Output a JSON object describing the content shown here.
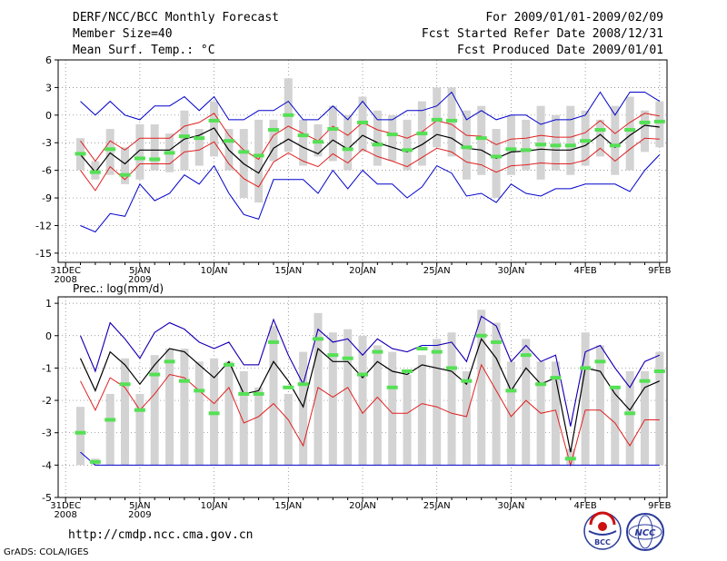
{
  "header": {
    "title": "DERF/NCC/BCC Monthly Forecast",
    "member_size": "Member Size=40",
    "variable": "Mean Surf. Temp.: °C",
    "period": "For 2009/01/01-2009/02/09",
    "started": "Fcst Started Refer Date 2008/12/31",
    "produced": "Fcst Produced Date 2009/01/01"
  },
  "footer": {
    "url": "http://cmdp.ncc.cma.gov.cn",
    "credit": "GrADS: COLA/IGES"
  },
  "logos": {
    "bcc_text": "BCC",
    "ncc_text": "NCC"
  },
  "colors": {
    "box": "#d3d3d3",
    "median": "#55e055",
    "mean": "#000000",
    "sd": "#e02020",
    "extreme": "#0000cc",
    "grid": "#777777"
  },
  "chart_data": [
    {
      "type": "box-line",
      "title": "",
      "ylabel": "",
      "ylim": [
        -16,
        6
      ],
      "yticks": [
        6,
        3,
        0,
        -3,
        -6,
        -9,
        -12,
        -15
      ],
      "x_start": "2008-12-31",
      "x_ticks": [
        {
          "day": 0,
          "label": "31DEC",
          "sub": "2008"
        },
        {
          "day": 5,
          "label": "5JAN",
          "sub": "2009"
        },
        {
          "day": 10,
          "label": "10JAN",
          "sub": ""
        },
        {
          "day": 15,
          "label": "15JAN",
          "sub": ""
        },
        {
          "day": 20,
          "label": "20JAN",
          "sub": ""
        },
        {
          "day": 25,
          "label": "25JAN",
          "sub": ""
        },
        {
          "day": 30,
          "label": "30JAN",
          "sub": ""
        },
        {
          "day": 35,
          "label": "4FEB",
          "sub": ""
        },
        {
          "day": 40,
          "label": "9FEB",
          "sub": ""
        }
      ],
      "x": [
        1,
        2,
        3,
        4,
        5,
        6,
        7,
        8,
        9,
        10,
        11,
        12,
        13,
        14,
        15,
        16,
        17,
        18,
        19,
        20,
        21,
        22,
        23,
        24,
        25,
        26,
        27,
        28,
        29,
        30,
        31,
        32,
        33,
        34,
        35,
        36,
        37,
        38,
        39,
        40
      ],
      "box_low": [
        -6.0,
        -7.0,
        -6.5,
        -7.5,
        -7.0,
        -6.0,
        -6.2,
        -6.0,
        -5.5,
        -4.5,
        -6.0,
        -9.0,
        -9.5,
        -5.0,
        -4.0,
        -5.5,
        -4.5,
        -5.0,
        -6.0,
        -4.0,
        -5.5,
        -5.0,
        -6.0,
        -5.5,
        -3.5,
        -4.5,
        -7.0,
        -6.5,
        -9.0,
        -6.5,
        -6.0,
        -7.0,
        -6.0,
        -6.5,
        -5.5,
        -4.5,
        -6.5,
        -6.0,
        -4.0,
        -3.5
      ],
      "box_high": [
        -2.5,
        -5.0,
        -1.5,
        -3.5,
        -1.0,
        -1.0,
        -2.0,
        0.5,
        -1.5,
        1.5,
        -1.5,
        -1.5,
        -0.5,
        -0.5,
        4.0,
        -0.5,
        -1.0,
        1.0,
        0.0,
        2.0,
        0.5,
        0.0,
        -0.5,
        1.5,
        3.0,
        3.0,
        0.5,
        1.0,
        -1.5,
        0.0,
        -0.5,
        1.0,
        0.0,
        1.0,
        0.5,
        -0.5,
        1.0,
        2.0,
        0.5,
        1.5
      ],
      "series": [
        {
          "name": "median",
          "values": [
            -4.2,
            -6.2,
            -3.7,
            -6.5,
            -4.7,
            -4.8,
            -4.1,
            -2.3,
            -2.5,
            -0.6,
            -2.8,
            -4.0,
            -4.4,
            -1.6,
            0.0,
            -2.2,
            -2.9,
            -1.5,
            -3.7,
            -0.8,
            -3.2,
            -2.1,
            -3.8,
            -2.0,
            -0.5,
            -0.6,
            -3.5,
            -2.5,
            -4.5,
            -3.7,
            -3.8,
            -3.2,
            -3.3,
            -3.3,
            -2.8,
            -1.6,
            -3.3,
            -1.6,
            -0.8,
            -0.7
          ]
        },
        {
          "name": "mean",
          "values": [
            -4.3,
            -6.2,
            -4.1,
            -5.3,
            -3.8,
            -3.8,
            -3.8,
            -2.6,
            -2.2,
            -1.4,
            -3.8,
            -5.3,
            -6.3,
            -3.6,
            -2.6,
            -3.5,
            -4.2,
            -2.7,
            -3.7,
            -2.2,
            -3.0,
            -3.5,
            -4.0,
            -3.2,
            -2.1,
            -2.5,
            -3.6,
            -3.8,
            -4.7,
            -4.0,
            -3.9,
            -3.7,
            -3.8,
            -3.8,
            -3.3,
            -2.1,
            -3.5,
            -2.2,
            -1.1,
            -1.3
          ]
        },
        {
          "name": "mean_plus_sd",
          "values": [
            -2.8,
            -5.0,
            -2.8,
            -3.8,
            -2.5,
            -2.5,
            -2.5,
            -1.2,
            -0.8,
            0.2,
            -2.2,
            -3.8,
            -4.8,
            -2.2,
            -1.2,
            -2.0,
            -2.8,
            -1.2,
            -2.2,
            -0.8,
            -1.6,
            -2.0,
            -2.5,
            -1.8,
            -0.6,
            -1.0,
            -2.2,
            -2.3,
            -3.2,
            -2.6,
            -2.5,
            -2.2,
            -2.4,
            -2.4,
            -1.9,
            -0.6,
            -2.0,
            -0.8,
            0.2,
            -0.1
          ]
        },
        {
          "name": "mean_minus_sd",
          "values": [
            -6.0,
            -8.2,
            -5.6,
            -7.0,
            -5.3,
            -5.3,
            -5.3,
            -4.0,
            -3.8,
            -2.9,
            -5.3,
            -6.9,
            -7.8,
            -5.1,
            -4.1,
            -5.0,
            -5.6,
            -4.2,
            -5.2,
            -3.7,
            -4.5,
            -5.0,
            -5.6,
            -4.6,
            -3.6,
            -4.0,
            -5.1,
            -5.4,
            -6.2,
            -5.5,
            -5.4,
            -5.2,
            -5.3,
            -5.3,
            -4.9,
            -3.6,
            -5.0,
            -3.7,
            -2.5,
            -2.6
          ]
        },
        {
          "name": "max",
          "values": [
            1.5,
            0.0,
            1.5,
            0.0,
            -0.5,
            1.0,
            1.0,
            2.0,
            0.5,
            2.0,
            -0.5,
            -0.5,
            0.5,
            0.5,
            1.5,
            -0.5,
            -0.5,
            1.0,
            -0.5,
            1.5,
            -0.5,
            -0.5,
            0.5,
            0.5,
            1.0,
            2.5,
            -0.5,
            0.5,
            -0.5,
            0.0,
            0.0,
            -1.0,
            -0.5,
            -0.5,
            0.0,
            2.5,
            0.0,
            2.5,
            2.5,
            1.5
          ]
        },
        {
          "name": "min",
          "values": [
            -12.0,
            -12.7,
            -10.7,
            -11.0,
            -7.5,
            -9.3,
            -8.5,
            -6.5,
            -7.5,
            -5.5,
            -8.5,
            -10.8,
            -11.3,
            -7.0,
            -7.0,
            -7.0,
            -8.5,
            -6.0,
            -8.0,
            -6.0,
            -7.5,
            -7.5,
            -9.0,
            -7.8,
            -5.5,
            -6.3,
            -8.8,
            -8.5,
            -9.5,
            -7.5,
            -8.5,
            -8.8,
            -8.0,
            -8.0,
            -7.5,
            -7.5,
            -7.5,
            -8.3,
            -6.0,
            -4.3
          ]
        }
      ]
    },
    {
      "type": "box-line",
      "title": "Prec.: log(mm/d)",
      "ylabel": "",
      "ylim": [
        -5,
        1.2
      ],
      "yticks": [
        1,
        0,
        -1,
        -2,
        -3,
        -4,
        -5
      ],
      "x_start": "2008-12-31",
      "x_ticks": [
        {
          "day": 0,
          "label": "31DEC",
          "sub": "2008"
        },
        {
          "day": 5,
          "label": "5JAN",
          "sub": "2009"
        },
        {
          "day": 10,
          "label": "10JAN",
          "sub": ""
        },
        {
          "day": 15,
          "label": "15JAN",
          "sub": ""
        },
        {
          "day": 20,
          "label": "20JAN",
          "sub": ""
        },
        {
          "day": 25,
          "label": "25JAN",
          "sub": ""
        },
        {
          "day": 30,
          "label": "30JAN",
          "sub": ""
        },
        {
          "day": 35,
          "label": "4FEB",
          "sub": ""
        },
        {
          "day": 40,
          "label": "9FEB",
          "sub": ""
        }
      ],
      "x": [
        1,
        2,
        3,
        4,
        5,
        6,
        7,
        8,
        9,
        10,
        11,
        12,
        13,
        14,
        15,
        16,
        17,
        18,
        19,
        20,
        21,
        22,
        23,
        24,
        25,
        26,
        27,
        28,
        29,
        30,
        31,
        32,
        33,
        34,
        35,
        36,
        37,
        38,
        39,
        40
      ],
      "box_low": [
        -4.0,
        -4.0,
        -4.0,
        -4.0,
        -4.0,
        -4.0,
        -4.0,
        -4.0,
        -4.0,
        -4.0,
        -4.0,
        -4.0,
        -4.0,
        -4.0,
        -4.0,
        -4.0,
        -4.0,
        -4.0,
        -4.0,
        -4.0,
        -4.0,
        -4.0,
        -4.0,
        -4.0,
        -4.0,
        -4.0,
        -4.0,
        -4.0,
        -4.0,
        -4.0,
        -4.0,
        -4.0,
        -4.0,
        -4.0,
        -4.0,
        -4.0,
        -4.0,
        -4.0,
        -4.0,
        -4.0
      ],
      "box_high": [
        -2.2,
        -3.8,
        -1.8,
        -0.7,
        -1.8,
        -0.6,
        -0.4,
        -0.4,
        -0.8,
        -0.7,
        -0.8,
        -1.1,
        -1.6,
        0.3,
        -1.8,
        -0.5,
        0.7,
        0.1,
        0.2,
        0.0,
        -0.3,
        -0.5,
        -1.2,
        -0.6,
        -0.1,
        0.1,
        -1.1,
        0.8,
        0.4,
        -0.8,
        -0.1,
        -0.8,
        -0.8,
        -3.5,
        0.1,
        -0.3,
        -1.6,
        -1.1,
        -1.1,
        -0.5
      ],
      "series": [
        {
          "name": "median",
          "values": [
            -3.0,
            -3.9,
            -2.6,
            -1.5,
            -2.3,
            -1.2,
            -0.8,
            -1.4,
            -1.7,
            -2.4,
            -0.9,
            -1.8,
            -1.8,
            -0.2,
            -1.6,
            -1.5,
            -0.1,
            -0.6,
            -0.7,
            -1.2,
            -0.5,
            -1.6,
            -1.1,
            -0.4,
            -0.5,
            -1.0,
            -1.4,
            0.0,
            -0.2,
            -1.7,
            -0.6,
            -1.5,
            -1.3,
            -3.8,
            -1.0,
            -0.8,
            -1.6,
            -2.4,
            -1.4,
            -1.1
          ]
        },
        {
          "name": "mean",
          "values": [
            -0.7,
            -1.7,
            -0.5,
            -0.9,
            -1.5,
            -0.9,
            -0.4,
            -0.5,
            -0.9,
            -1.3,
            -0.8,
            -1.8,
            -1.7,
            -0.8,
            -1.4,
            -2.2,
            -0.4,
            -0.8,
            -0.8,
            -1.3,
            -0.8,
            -1.1,
            -1.2,
            -0.9,
            -1.0,
            -1.1,
            -1.5,
            -0.1,
            -0.7,
            -1.7,
            -1.0,
            -1.5,
            -1.3,
            -3.6,
            -1.0,
            -1.1,
            -1.8,
            -2.3,
            -1.6,
            -1.4
          ]
        },
        {
          "name": "mean_plus_sd",
          "values": [
            0.0,
            -1.1,
            0.4,
            -0.1,
            -0.7,
            0.1,
            0.4,
            0.2,
            -0.2,
            -0.4,
            -0.2,
            -0.9,
            -0.9,
            0.5,
            -0.6,
            -1.5,
            0.2,
            -0.2,
            -0.1,
            -0.6,
            -0.1,
            -0.4,
            -0.5,
            -0.3,
            -0.3,
            -0.2,
            -0.8,
            0.6,
            0.3,
            -0.8,
            -0.3,
            -0.8,
            -0.6,
            -2.8,
            -0.5,
            -0.3,
            -1.0,
            -1.6,
            -0.8,
            -0.6
          ]
        },
        {
          "name": "mean_minus_sd",
          "values": [
            -1.4,
            -2.3,
            -1.3,
            -1.6,
            -2.3,
            -1.8,
            -1.2,
            -1.3,
            -1.7,
            -2.1,
            -1.6,
            -2.7,
            -2.5,
            -2.1,
            -2.6,
            -3.4,
            -1.6,
            -1.9,
            -1.6,
            -2.4,
            -1.9,
            -2.4,
            -2.4,
            -2.1,
            -2.2,
            -2.4,
            -2.5,
            -0.9,
            -1.7,
            -2.5,
            -2.0,
            -2.4,
            -2.3,
            -4.0,
            -2.3,
            -2.3,
            -2.7,
            -3.4,
            -2.6,
            -2.6
          ]
        },
        {
          "name": "max",
          "values": [
            0.0,
            -1.1,
            0.4,
            -0.1,
            -0.7,
            0.1,
            0.4,
            0.2,
            -0.2,
            -0.4,
            -0.2,
            -0.9,
            -0.9,
            0.5,
            -0.6,
            -1.5,
            0.2,
            -0.2,
            -0.1,
            -0.6,
            -0.1,
            -0.4,
            -0.5,
            -0.3,
            -0.3,
            -0.2,
            -0.8,
            0.6,
            0.3,
            -0.8,
            -0.3,
            -0.8,
            -0.6,
            -2.8,
            -0.5,
            -0.3,
            -1.0,
            -1.6,
            -0.8,
            -0.6
          ]
        },
        {
          "name": "min",
          "values": [
            -3.6,
            -4.0,
            -4.0,
            -4.0,
            -4.0,
            -4.0,
            -4.0,
            -4.0,
            -4.0,
            -4.0,
            -4.0,
            -4.0,
            -4.0,
            -4.0,
            -4.0,
            -4.0,
            -4.0,
            -4.0,
            -4.0,
            -4.0,
            -4.0,
            -4.0,
            -4.0,
            -4.0,
            -4.0,
            -4.0,
            -4.0,
            -4.0,
            -4.0,
            -4.0,
            -4.0,
            -4.0,
            -4.0,
            -4.0,
            -4.0,
            -4.0,
            -4.0,
            -4.0,
            -4.0,
            -4.0
          ]
        }
      ]
    }
  ]
}
